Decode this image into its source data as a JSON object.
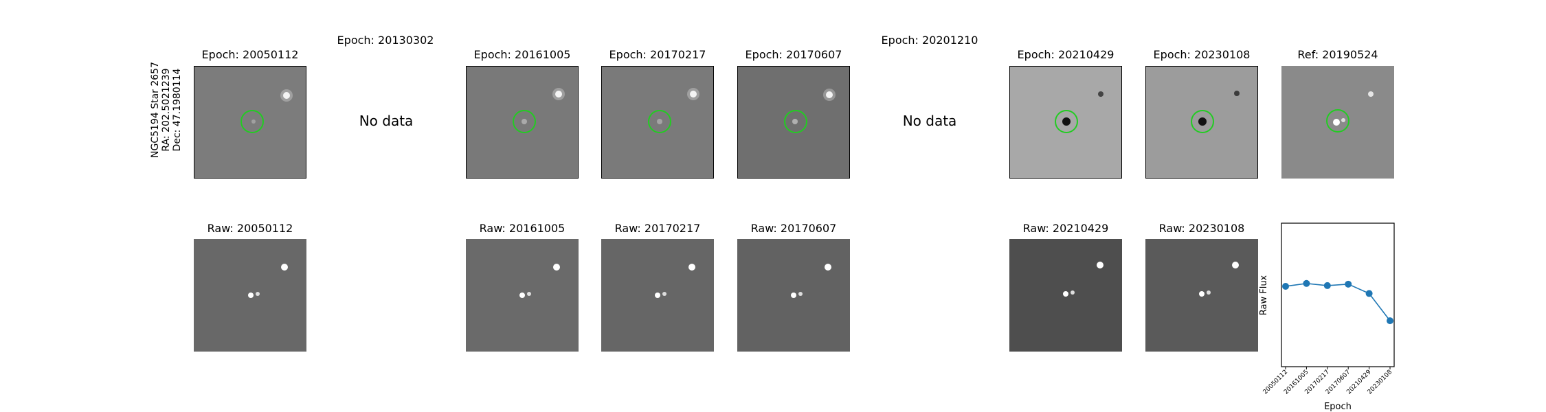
{
  "star": {
    "line1": "NGC5194 Star 2657",
    "line2": "RA: 202.5021239",
    "line3": "Dec: 47.1980114"
  },
  "top_row": [
    {
      "title": "Epoch: 20050112",
      "has_data": true,
      "shade": "#7c7c7c"
    },
    {
      "title": "Epoch: 20130302",
      "has_data": false,
      "nodata": "No data"
    },
    {
      "title": "Epoch: 20161005",
      "has_data": true,
      "shade": "#797979"
    },
    {
      "title": "Epoch: 20170217",
      "has_data": true,
      "shade": "#7a7a7a"
    },
    {
      "title": "Epoch: 20170607",
      "has_data": true,
      "shade": "#6f6f6f"
    },
    {
      "title": "Epoch: 20201210",
      "has_data": false,
      "nodata": "No data"
    },
    {
      "title": "Epoch: 20210429",
      "has_data": true,
      "shade": "#a8a8a8"
    },
    {
      "title": "Epoch: 20230108",
      "has_data": true,
      "shade": "#9c9c9c"
    },
    {
      "title": "Ref: 20190524",
      "has_data": true,
      "shade": "#8a8a8a"
    }
  ],
  "bottom_row": [
    {
      "title": "Raw: 20050112",
      "shade": "#686868"
    },
    {
      "title": "Raw: 20161005",
      "shade": "#6a6a6a"
    },
    {
      "title": "Raw: 20170217",
      "shade": "#666666"
    },
    {
      "title": "Raw: 20170607",
      "shade": "#626262"
    },
    {
      "title": "Raw: 20210429",
      "shade": "#4e4e4e"
    },
    {
      "title": "Raw: 20230108",
      "shade": "#5a5a5a"
    }
  ],
  "colors": {
    "circle": "#22cc22",
    "line": "#1f77b4"
  },
  "chart_data": {
    "type": "line",
    "categories": [
      "20050112",
      "20161005",
      "20170217",
      "20170607",
      "20210429",
      "20230108"
    ],
    "values": [
      0.56,
      0.58,
      0.565,
      0.575,
      0.51,
      0.32
    ],
    "xlabel": "Epoch",
    "ylabel": "Raw Flux",
    "ylim": [
      0,
      1
    ],
    "grid": false
  }
}
